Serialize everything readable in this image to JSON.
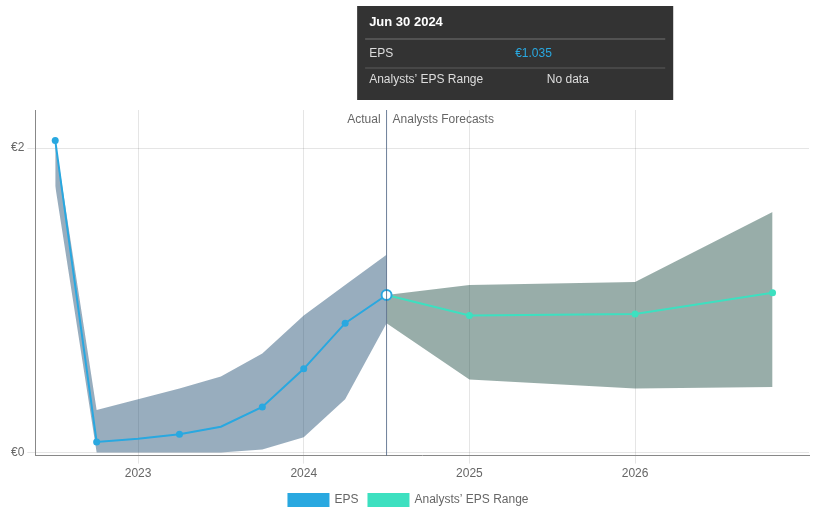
{
  "chart_data": {
    "type": "line",
    "xlim": [
      2022.38,
      2027.05
    ],
    "xticks": [
      2023.0,
      2024.0,
      2025.0,
      2026.0
    ],
    "ylim": [
      -0.02,
      2.25
    ],
    "yticks": [
      {
        "value": 0.0,
        "label": "€0"
      },
      {
        "value": 2.0,
        "label": "€2"
      }
    ],
    "grid": true,
    "legend": "bottom",
    "series": [
      {
        "name": "EPS",
        "color": "#29a8e0",
        "x": [
          2022.5,
          2022.75,
          2023.0,
          2023.25,
          2023.5,
          2023.75,
          2024.0,
          2024.25,
          2024.5
        ],
        "values": [
          2.05,
          0.07,
          0.09,
          0.12,
          0.17,
          0.3,
          0.55,
          0.85,
          1.035
        ],
        "band": {
          "color": "#1a4a6e",
          "lo": [
            1.75,
            0.0,
            0.0,
            0.0,
            0.0,
            0.02,
            0.1,
            0.35,
            0.85
          ],
          "hi": [
            2.05,
            0.28,
            0.35,
            0.42,
            0.5,
            0.65,
            0.9,
            1.1,
            1.3
          ]
        },
        "markers": {
          "x": [
            2022.5,
            2022.75,
            2023.25,
            2023.75,
            2024.0,
            2024.25,
            2024.5
          ],
          "values": [
            2.05,
            0.07,
            0.12,
            0.3,
            0.55,
            0.85,
            1.035
          ]
        }
      },
      {
        "name": "Analysts’ EPS Range",
        "color": "#3de0c0",
        "x": [
          2024.5,
          2025.0,
          2026.0,
          2026.83
        ],
        "values": [
          1.035,
          0.9,
          0.91,
          1.05
        ],
        "band": {
          "color": "#1a4a40",
          "lo": [
            0.85,
            0.48,
            0.42,
            0.43
          ],
          "hi": [
            1.035,
            1.1,
            1.12,
            1.58
          ]
        },
        "markers": {
          "x": [
            2025.0,
            2026.0,
            2026.83
          ],
          "values": [
            0.9,
            0.91,
            1.05
          ]
        }
      }
    ],
    "divider": {
      "x": 2024.5,
      "labels": [
        "Actual",
        "Analysts Forecasts"
      ]
    },
    "tooltip": {
      "title": "Jun 30 2024",
      "rows": [
        {
          "label": "EPS",
          "value": "€1.035"
        },
        {
          "label": "Analysts’ EPS Range",
          "value": "No data"
        }
      ]
    }
  }
}
